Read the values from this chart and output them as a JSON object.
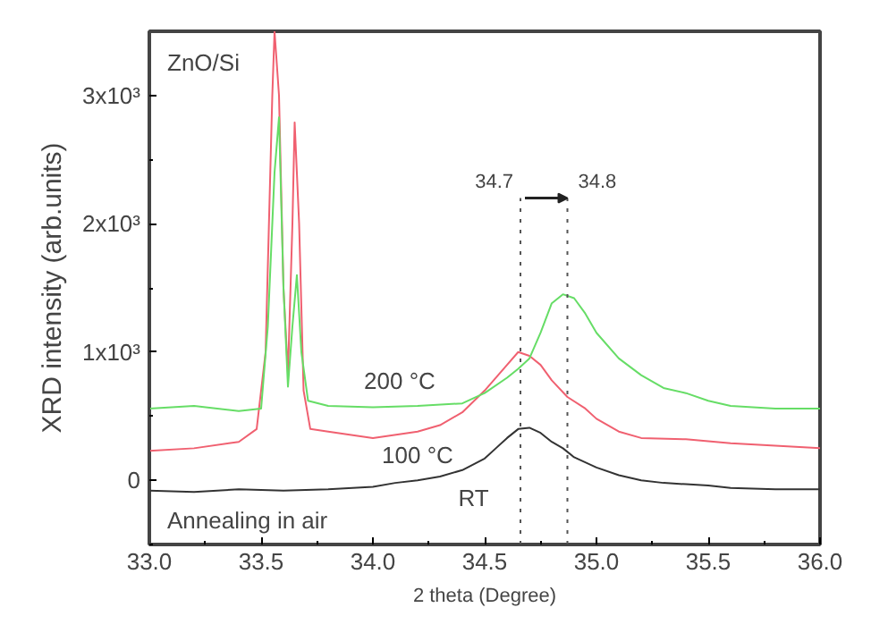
{
  "chart_data": {
    "type": "line",
    "xlabel": "2 theta (Degree)",
    "ylabel": "XRD intensity (arb.units)",
    "xlim": [
      33.0,
      36.0
    ],
    "ylim": [
      -500,
      3500
    ],
    "xticks": [
      {
        "value": 33,
        "label": "33.0"
      },
      {
        "value": 33.5,
        "label": "33.5"
      },
      {
        "value": 34,
        "label": "34.0"
      },
      {
        "value": 34.5,
        "label": "34.5"
      },
      {
        "value": 35,
        "label": "35.0"
      },
      {
        "value": 35.5,
        "label": "35.5"
      },
      {
        "value": 36,
        "label": "36.0"
      }
    ],
    "yticks": [
      0,
      {
        "value": 1000,
        "label": "1x10³"
      },
      {
        "value": 2000,
        "label": "2x10³"
      },
      {
        "value": 3000,
        "label": "3x10³"
      }
    ],
    "grid": false,
    "legend": false,
    "marker": "none",
    "line_style": "solid",
    "annotations": [
      "ZnO/Si",
      "Annealing in air",
      {
        "text": "34.7",
        "x": 34.66,
        "y": 2200
      },
      {
        "text": "34.8",
        "x": 34.87,
        "y": 2200
      }
    ],
    "ref_lines": [
      {
        "axis": "x",
        "value": 34.66,
        "line_style": "dotted",
        "color": "#555555"
      },
      {
        "axis": "x",
        "value": 34.87,
        "line_style": "dotted",
        "color": "#555555"
      }
    ],
    "series": [
      {
        "name": "RT",
        "color": "#333333",
        "x": [
          33.0,
          33.2,
          33.4,
          33.6,
          33.8,
          34.0,
          34.1,
          34.2,
          34.3,
          34.4,
          34.5,
          34.55,
          34.6,
          34.65,
          34.7,
          34.75,
          34.8,
          34.85,
          34.9,
          35.0,
          35.1,
          35.2,
          35.3,
          35.4,
          35.5,
          35.6,
          35.8,
          36.0
        ],
        "values": [
          -80,
          -90,
          -70,
          -80,
          -70,
          -50,
          -20,
          0,
          30,
          80,
          170,
          250,
          330,
          400,
          410,
          370,
          300,
          250,
          180,
          100,
          40,
          0,
          -20,
          -30,
          -40,
          -60,
          -70,
          -70
        ]
      },
      {
        "name": "100 °C",
        "color": "#f06070",
        "x": [
          33.0,
          33.2,
          33.4,
          33.48,
          33.52,
          33.55,
          33.56,
          33.58,
          33.6,
          33.62,
          33.64,
          33.65,
          33.67,
          33.69,
          33.72,
          33.8,
          34.0,
          34.2,
          34.3,
          34.4,
          34.5,
          34.6,
          34.65,
          34.7,
          34.75,
          34.8,
          34.87,
          34.95,
          35.0,
          35.1,
          35.2,
          35.4,
          35.6,
          35.8,
          36.0
        ],
        "values": [
          230,
          250,
          300,
          400,
          1000,
          3000,
          3500,
          3000,
          1500,
          830,
          2000,
          2790,
          2000,
          700,
          400,
          380,
          330,
          380,
          430,
          530,
          700,
          900,
          1000,
          970,
          900,
          780,
          650,
          560,
          480,
          380,
          330,
          320,
          290,
          270,
          250
        ]
      },
      {
        "name": "200 °C",
        "color": "#66dd66",
        "x": [
          33.0,
          33.2,
          33.4,
          33.5,
          33.53,
          33.56,
          33.58,
          33.6,
          33.62,
          33.64,
          33.66,
          33.68,
          33.71,
          33.8,
          34.0,
          34.2,
          34.4,
          34.5,
          34.6,
          34.65,
          34.7,
          34.75,
          34.8,
          34.85,
          34.9,
          34.95,
          35.0,
          35.1,
          35.2,
          35.3,
          35.4,
          35.5,
          35.6,
          35.8,
          36.0
        ],
        "values": [
          560,
          580,
          540,
          560,
          1200,
          2400,
          2830,
          1500,
          730,
          1200,
          1600,
          1000,
          620,
          580,
          570,
          580,
          600,
          680,
          800,
          870,
          950,
          1150,
          1380,
          1450,
          1420,
          1300,
          1150,
          950,
          820,
          720,
          680,
          620,
          580,
          560,
          560
        ]
      }
    ]
  }
}
